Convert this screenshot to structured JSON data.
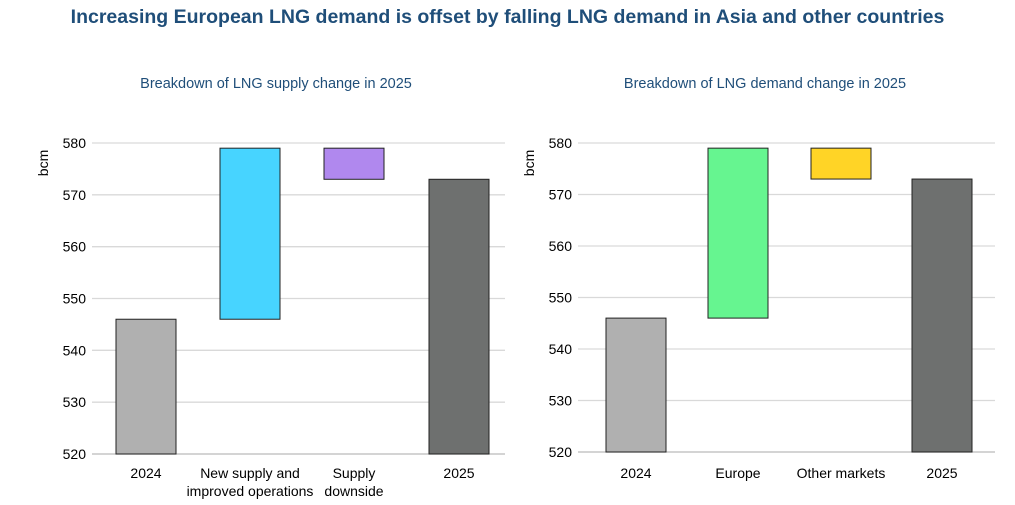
{
  "title": "Increasing European LNG demand is offset by falling LNG demand in Asia and other countries",
  "chart_data": [
    {
      "type": "waterfall",
      "title": "Breakdown of LNG supply change in 2025",
      "ylabel": "bcm",
      "ylim": [
        520,
        580
      ],
      "yticks": [
        520,
        530,
        540,
        550,
        560,
        570,
        580
      ],
      "grid": true,
      "categories": [
        [
          "2024"
        ],
        [
          "New supply and",
          "improved operations"
        ],
        [
          "Supply",
          "downside"
        ],
        [
          "2025"
        ]
      ],
      "bars": [
        {
          "start": 520,
          "end": 546,
          "color": "#b0b0b0"
        },
        {
          "start": 546,
          "end": 579,
          "color": "#47d4ff"
        },
        {
          "start": 579,
          "end": 573,
          "color": "#b088ee"
        },
        {
          "start": 520,
          "end": 573,
          "color": "#6e706f"
        }
      ]
    },
    {
      "type": "waterfall",
      "title": "Breakdown of LNG demand change in 2025",
      "ylabel": "bcm",
      "ylim": [
        520,
        580
      ],
      "yticks": [
        520,
        530,
        540,
        550,
        560,
        570,
        580
      ],
      "grid": true,
      "categories": [
        [
          "2024"
        ],
        [
          "Europe"
        ],
        [
          "Other markets"
        ],
        [
          "2025"
        ]
      ],
      "bars": [
        {
          "start": 520,
          "end": 546,
          "color": "#b0b0b0"
        },
        {
          "start": 546,
          "end": 579,
          "color": "#66f590"
        },
        {
          "start": 579,
          "end": 573,
          "color": "#ffd426"
        },
        {
          "start": 520,
          "end": 573,
          "color": "#6e706f"
        }
      ]
    }
  ]
}
